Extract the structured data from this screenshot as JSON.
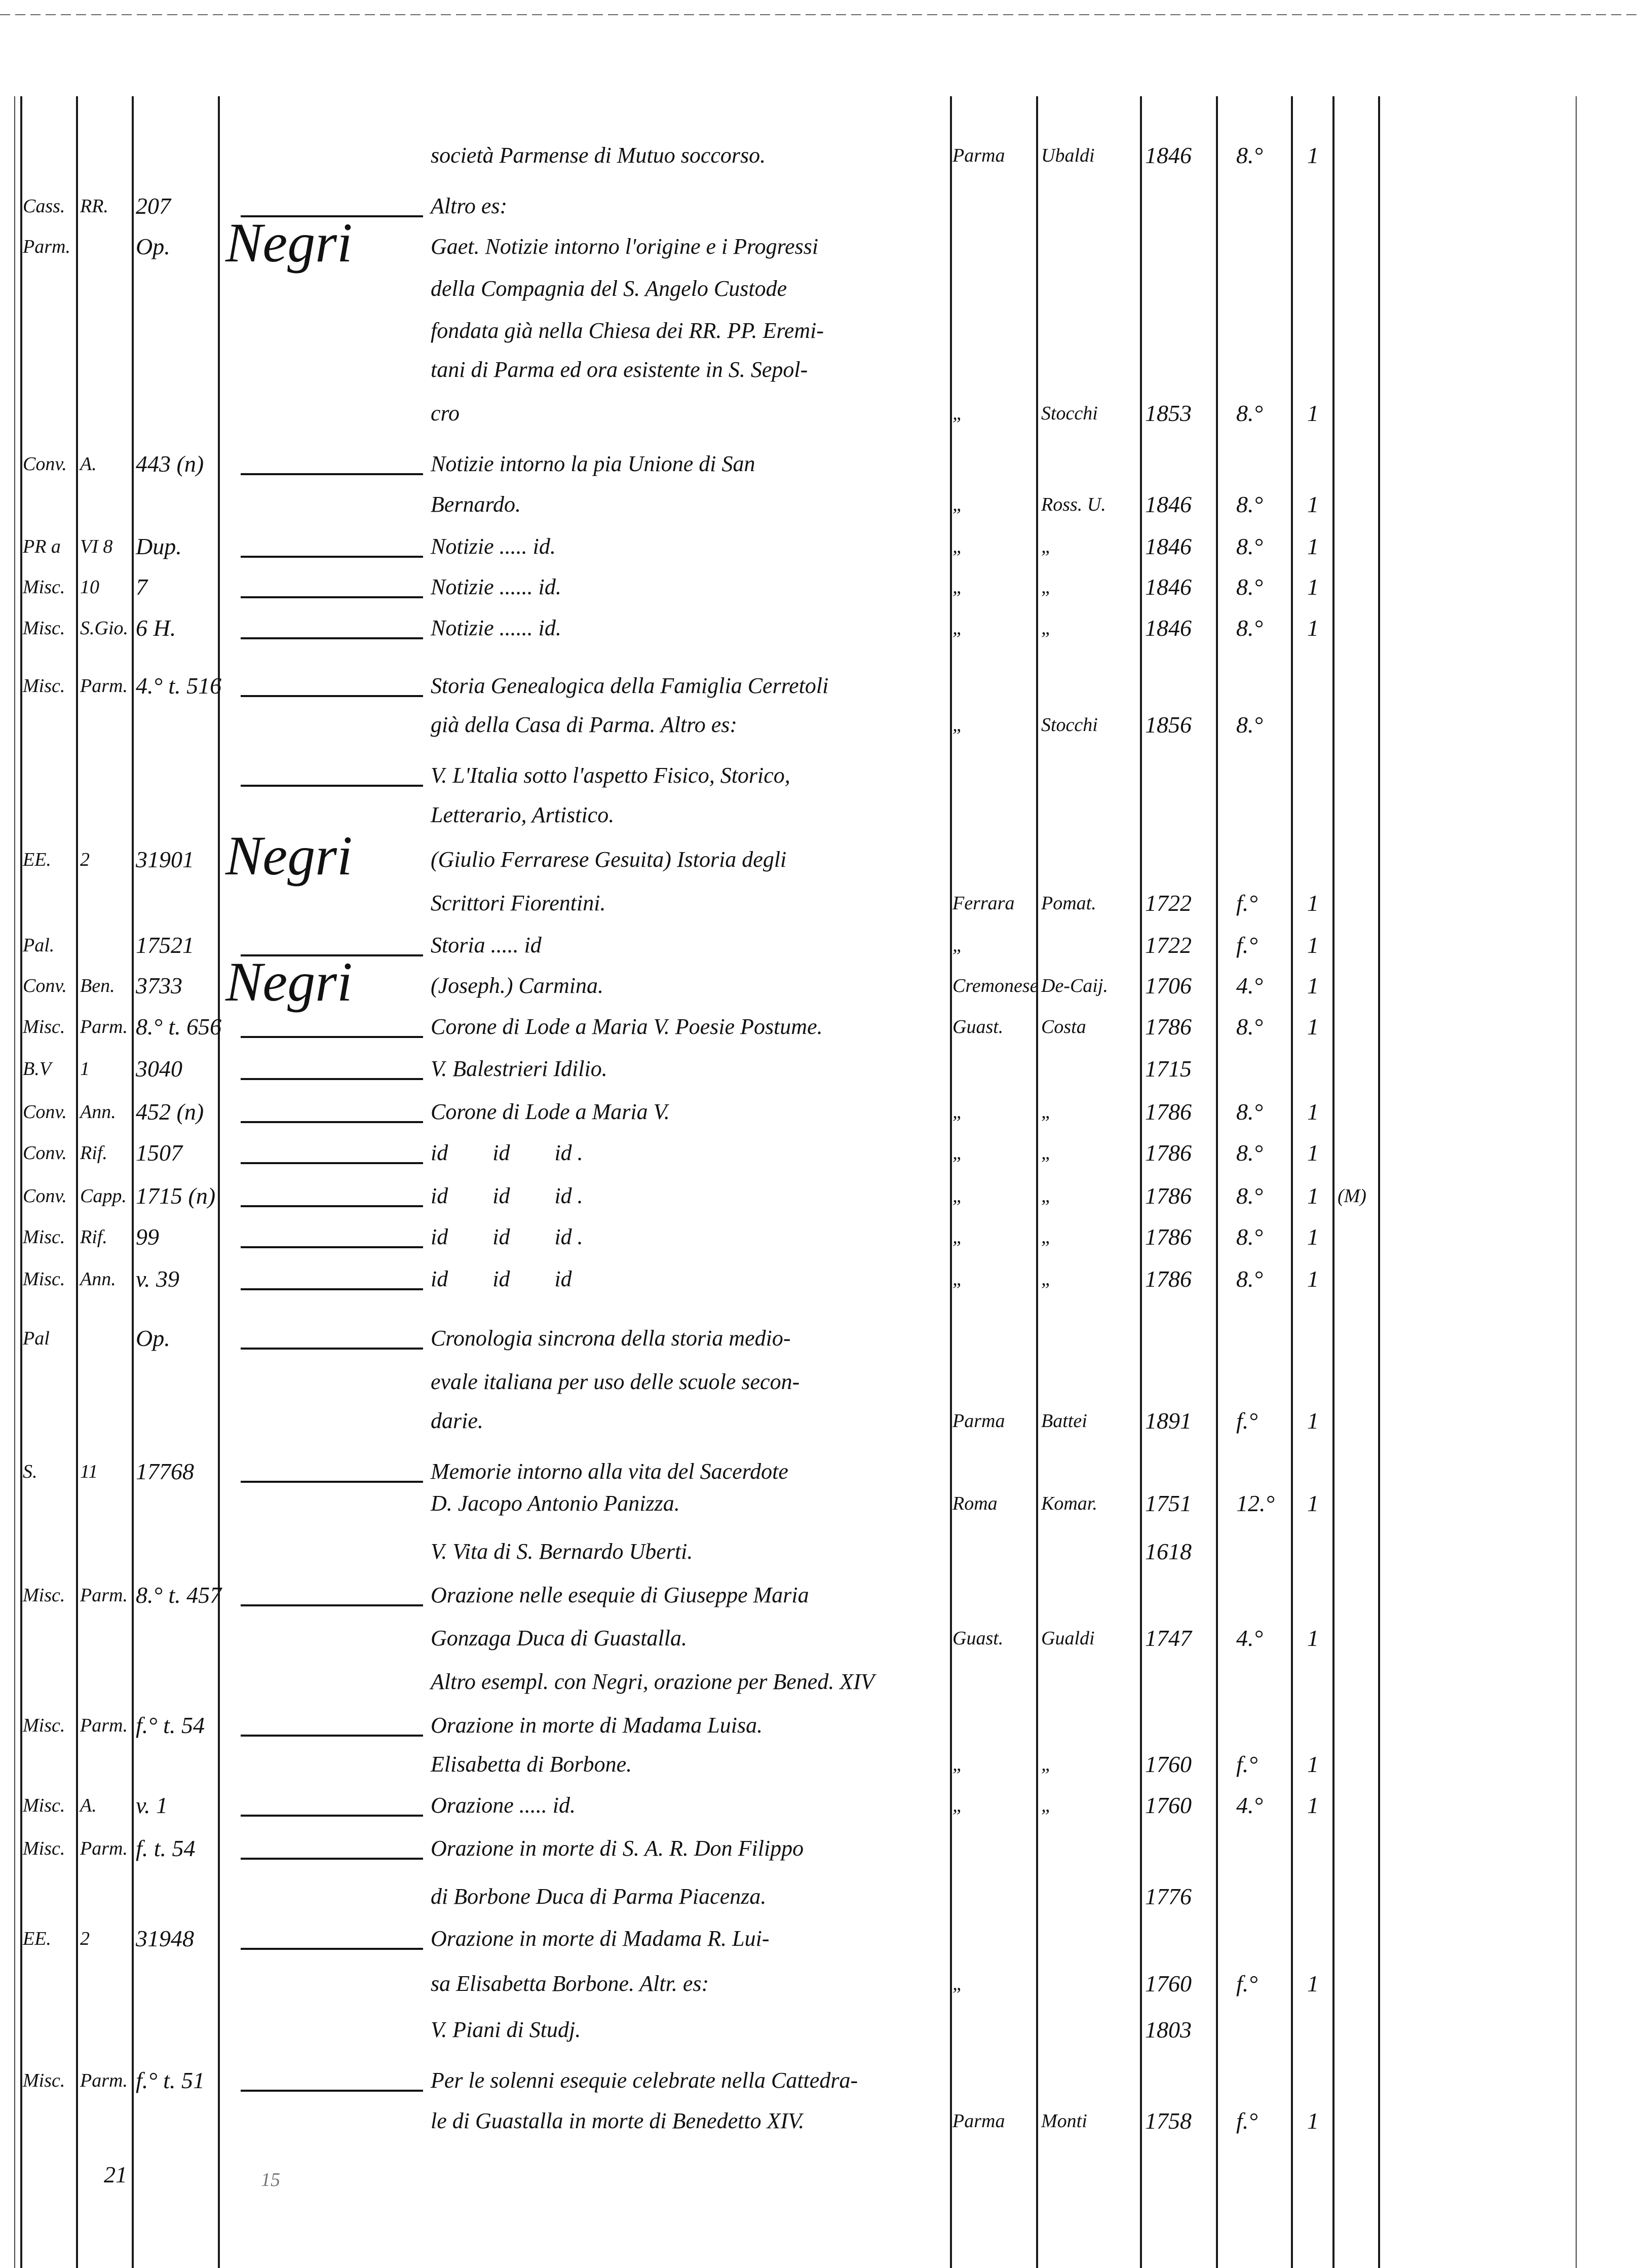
{
  "document": {
    "lines": [
      {
        "title": "società Parmense di Mutuo soccorso.",
        "place": "Parma",
        "publisher": "Ubaldi",
        "year": "1846",
        "format": "8.°",
        "copies": "1"
      },
      {
        "c1": "Cass.",
        "c2": "RR.",
        "c3": "207",
        "dash": true,
        "title": "Altro es:"
      },
      {
        "c1": "Parm.",
        "c3": "Op.",
        "author": "Negri",
        "title": "Gaet. Notizie intorno l'origine e i Progressi"
      },
      {
        "title": "della Compagnia del S. Angelo Custode"
      },
      {
        "title": "fondata già nella Chiesa dei RR. PP. Eremi-"
      },
      {
        "title": "tani di Parma ed ora esistente in S. Sepol-"
      },
      {
        "title": "cro",
        "place": "„",
        "publisher": "Stocchi",
        "year": "1853",
        "format": "8.°",
        "copies": "1"
      },
      {
        "c1": "Conv.",
        "c2": "A.",
        "c3": "443 (n)",
        "dash": true,
        "title": "Notizie intorno la pia Unione di San"
      },
      {
        "title": "Bernardo.",
        "place": "„",
        "publisher": "Ross. U.",
        "year": "1846",
        "format": "8.°",
        "copies": "1"
      },
      {
        "c1": "PR a",
        "c2": "VI 8",
        "c3": "Dup.",
        "dash": true,
        "title": "Notizie ..... id.",
        "place": "„",
        "publisher": "„",
        "year": "1846",
        "format": "8.°",
        "copies": "1"
      },
      {
        "c1": "Misc.",
        "c2": "10",
        "c3": "7",
        "dash": true,
        "title": "Notizie ...... id.",
        "place": "„",
        "publisher": "„",
        "year": "1846",
        "format": "8.°",
        "copies": "1"
      },
      {
        "c1": "Misc.",
        "c2": "S.Gio.",
        "c3": "6 H.",
        "dash": true,
        "title": "Notizie ...... id.",
        "place": "„",
        "publisher": "„",
        "year": "1846",
        "format": "8.°",
        "copies": "1"
      },
      {
        "c1": "Misc.",
        "c2": "Parm.",
        "c3": "4.° t. 516",
        "dash": true,
        "title": "Storia Genealogica della Famiglia Cerretoli"
      },
      {
        "title": "già della Casa di Parma. Altro es:",
        "place": "„",
        "publisher": "Stocchi",
        "year": "1856",
        "format": "8.°"
      },
      {
        "dash": true,
        "title": "V. L'Italia sotto l'aspetto Fisico, Storico,"
      },
      {
        "title": "Letterario, Artistico."
      },
      {
        "c1": "EE.",
        "c2": "2",
        "c3": "31901",
        "author": "Negri",
        "title": "(Giulio Ferrarese Gesuita) Istoria degli"
      },
      {
        "title": "Scrittori Fiorentini.",
        "place": "Ferrara",
        "publisher": "Pomat.",
        "year": "1722",
        "format": "f.°",
        "copies": "1"
      },
      {
        "c1": "Pal.",
        "c3": "17521",
        "dash": true,
        "title": "Storia ..... id",
        "place": "„",
        "year": "1722",
        "format": "f.°",
        "copies": "1"
      },
      {
        "c1": "Conv.",
        "c2": "Ben.",
        "c3": "3733",
        "author": "Negri",
        "title": "(Joseph.) Carmina.",
        "place": "Cremonese",
        "publisher": "De-Caij.",
        "year": "1706",
        "format": "4.°",
        "copies": "1"
      },
      {
        "c1": "Misc.",
        "c2": "Parm.",
        "c3": "8.° t. 656",
        "dash": true,
        "title": "Corone di Lode a Maria V. Poesie Postume.",
        "place": "Guast.",
        "publisher": "Costa",
        "year": "1786",
        "format": "8.°",
        "copies": "1"
      },
      {
        "c1": "B.V",
        "c2": "1",
        "c3": "3040",
        "dash": true,
        "title": "V. Balestrieri Idilio.",
        "year": "1715"
      },
      {
        "c1": "Conv.",
        "c2": "Ann.",
        "c3": "452 (n)",
        "dash": true,
        "title": "Corone di Lode a Maria V.",
        "place": "„",
        "publisher": "„",
        "year": "1786",
        "format": "8.°",
        "copies": "1"
      },
      {
        "c1": "Conv.",
        "c2": "Rif.",
        "c3": "1507",
        "dash": true,
        "title": "id        id        id .",
        "place": "„",
        "publisher": "„",
        "year": "1786",
        "format": "8.°",
        "copies": "1"
      },
      {
        "c1": "Conv.",
        "c2": "Capp.",
        "c3": "1715 (n)",
        "dash": true,
        "title": "id        id        id .",
        "place": "„",
        "publisher": "„",
        "year": "1786",
        "format": "8.°",
        "copies": "1",
        "note": "(M)"
      },
      {
        "c1": "Misc.",
        "c2": "Rif.",
        "c3": "99",
        "dash": true,
        "title": "id        id        id .",
        "place": "„",
        "publisher": "„",
        "year": "1786",
        "format": "8.°",
        "copies": "1"
      },
      {
        "c1": "Misc.",
        "c2": "Ann.",
        "c3": "v. 39",
        "dash": true,
        "title": "id        id        id",
        "place": "„",
        "publisher": "„",
        "year": "1786",
        "format": "8.°",
        "copies": "1"
      },
      {
        "c1": "Pal",
        "c3": "Op.",
        "dash": true,
        "title": "Cronologia sincrona della storia medio-"
      },
      {
        "title": "evale italiana per uso delle scuole secon-"
      },
      {
        "title": "darie.",
        "place": "Parma",
        "publisher": "Battei",
        "year": "1891",
        "format": "f.°",
        "copies": "1"
      },
      {
        "c1": "S.",
        "c2": "11",
        "c3": "17768",
        "dash": true,
        "title": "Memorie intorno alla vita del Sacerdote"
      },
      {
        "title": "D. Jacopo Antonio Panizza.",
        "place": "Roma",
        "publisher": "Komar.",
        "year": "1751",
        "format": "12.°",
        "copies": "1"
      },
      {
        "title": "V. Vita di S. Bernardo Uberti.",
        "year": "1618"
      },
      {
        "c1": "Misc.",
        "c2": "Parm.",
        "c3": "8.° t. 457",
        "dash": true,
        "title": "Orazione nelle esequie di Giuseppe Maria"
      },
      {
        "title": "Gonzaga Duca di Guastalla.",
        "place": "Guast.",
        "publisher": "Gualdi",
        "year": "1747",
        "format": "4.°",
        "copies": "1"
      },
      {
        "title": "Altro esempl. con Negri, orazione per Bened. XIV"
      },
      {
        "c1": "Misc.",
        "c2": "Parm.",
        "c3": "f.° t. 54",
        "dash": true,
        "title": "Orazione in morte di Madama Luisa."
      },
      {
        "title": "Elisabetta di Borbone.",
        "place": "„",
        "publisher": "„",
        "year": "1760",
        "format": "f.°",
        "copies": "1"
      },
      {
        "c1": "Misc.",
        "c2": "A.",
        "c3": "v. 1",
        "dash": true,
        "title": "Orazione ..... id.",
        "place": "„",
        "publisher": "„",
        "year": "1760",
        "format": "4.°",
        "copies": "1"
      },
      {
        "c1": "Misc.",
        "c2": "Parm.",
        "c3": "f. t. 54",
        "dash": true,
        "title": "Orazione in morte di S. A. R. Don Filippo"
      },
      {
        "title": "di Borbone Duca di Parma Piacenza.",
        "year": "1776"
      },
      {
        "c1": "EE.",
        "c2": "2",
        "c3": "31948",
        "dash": true,
        "title": "Orazione in morte di Madama R. Lui-"
      },
      {
        "title": "sa Elisabetta Borbone. Altr. es:",
        "place": "„",
        "year": "1760",
        "format": "f.°",
        "copies": "1"
      },
      {
        "title": "V. Piani di Studj.",
        "year": "1803"
      },
      {
        "c1": "Misc.",
        "c2": "Parm.",
        "c3": "f.° t. 51",
        "dash": true,
        "title": "Per le solenni esequie celebrate nella Cattedra-"
      },
      {
        "title": "le di Guastalla in morte di Benedetto XIV.",
        "place": "Parma",
        "publisher": "Monti",
        "year": "1758",
        "format": "f.°",
        "copies": "1"
      }
    ],
    "footer": {
      "page_number": "21",
      "mark": "15"
    }
  }
}
